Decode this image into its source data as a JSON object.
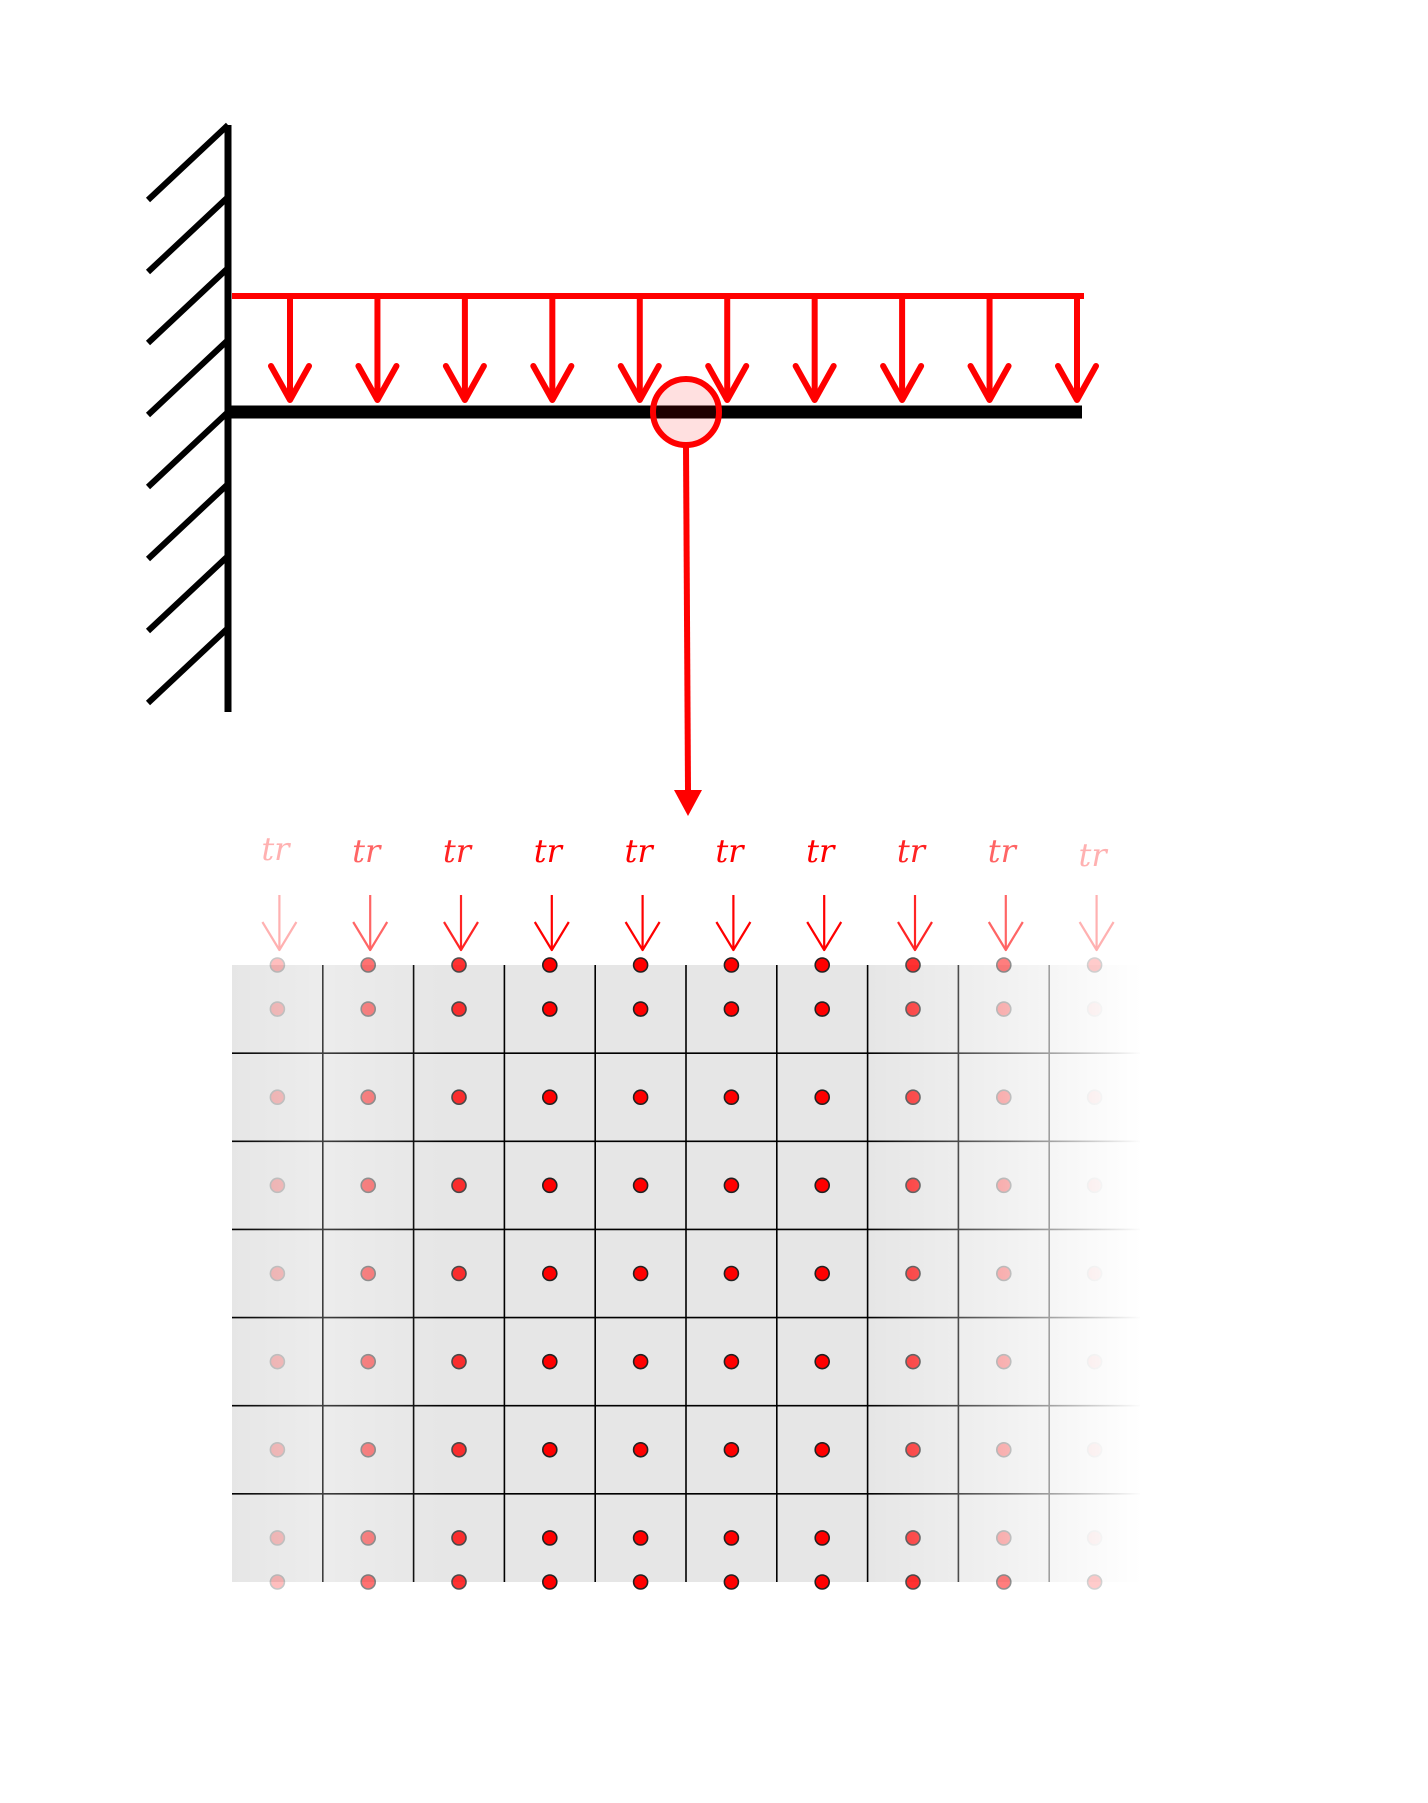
{
  "colors": {
    "load": "#ff0000",
    "structure": "#000000",
    "cell_fill": "#e6e6e6",
    "cell_line": "#000000",
    "point_fill": "#ff0000",
    "zoom_fill": "#ffe0e0",
    "background": "#ffffff"
  },
  "icons": {
    "wall": "fixed-support-hatching",
    "beam": "cantilever-beam",
    "load": "distributed-load-arrows",
    "zoom": "zoom-circle",
    "connector": "zoom-arrow"
  },
  "beam_diagram": {
    "load_arrow_count": 10
  },
  "particle_grid": {
    "columns": 10,
    "rows": 7,
    "traction_label": "tr",
    "traction_label_count": 10
  }
}
